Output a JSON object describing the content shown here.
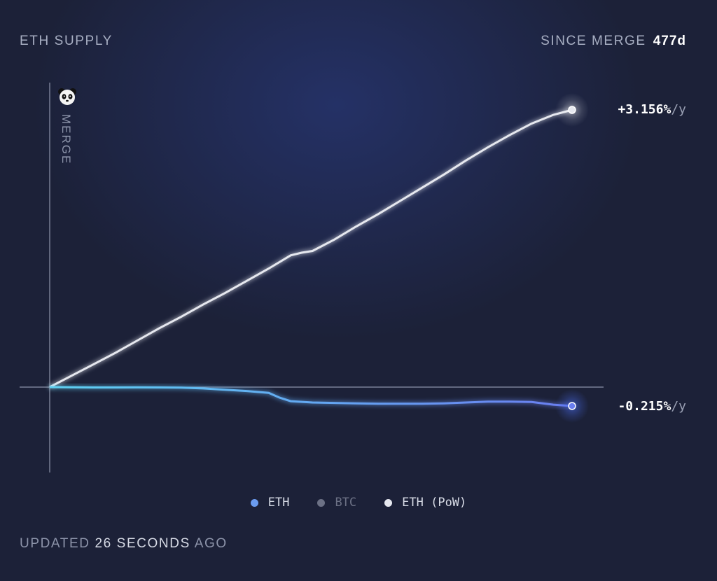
{
  "header": {
    "title": "ETH SUPPLY",
    "since_label": "SINCE MERGE",
    "since_value": "477d"
  },
  "markers": {
    "merge_label": "MERGE"
  },
  "end_labels": {
    "pow_value": "+3.156%",
    "pow_unit": "/y",
    "eth_value": "-0.215%",
    "eth_unit": "/y"
  },
  "legend": {
    "items": [
      {
        "label": "ETH",
        "color": "#6b9cf0",
        "text_color": "#d7dbe6"
      },
      {
        "label": "BTC",
        "color": "#6c7185",
        "text_color": "#6c7185"
      },
      {
        "label": "ETH (PoW)",
        "color": "#e6e8ef",
        "text_color": "#d7dbe6"
      }
    ]
  },
  "footer": {
    "prefix": "UPDATED",
    "number": "26 SECONDS",
    "suffix": "AGO"
  },
  "colors": {
    "eth_start": "#5ed1f2",
    "eth_end": "#6a7ef0",
    "pow_line": "#e6e8ef",
    "axis": "#8d94aa"
  },
  "chart_data": {
    "type": "line",
    "xlabel": "",
    "ylabel": "",
    "x_unit": "days since merge",
    "xlim": [
      0,
      477
    ],
    "ylim": [
      -1.0,
      4.1
    ],
    "series": [
      {
        "name": "ETH (PoW)",
        "end_label": "+3.156%/y",
        "x": [
          0,
          20,
          40,
          60,
          80,
          100,
          120,
          140,
          160,
          180,
          200,
          220,
          230,
          240,
          260,
          280,
          300,
          320,
          340,
          360,
          380,
          400,
          420,
          440,
          460,
          477
        ],
        "y": [
          0.0,
          0.13,
          0.26,
          0.39,
          0.53,
          0.67,
          0.8,
          0.94,
          1.07,
          1.21,
          1.35,
          1.5,
          1.53,
          1.55,
          1.68,
          1.83,
          1.97,
          2.12,
          2.27,
          2.42,
          2.58,
          2.73,
          2.87,
          3.0,
          3.1,
          3.156
        ]
      },
      {
        "name": "ETH",
        "end_label": "-0.215%/y",
        "x": [
          0,
          20,
          40,
          60,
          80,
          100,
          120,
          140,
          160,
          180,
          200,
          210,
          220,
          240,
          260,
          280,
          300,
          320,
          340,
          360,
          380,
          400,
          420,
          440,
          460,
          477
        ],
        "y": [
          0.0,
          -0.002,
          -0.004,
          -0.004,
          -0.003,
          -0.004,
          -0.006,
          -0.015,
          -0.03,
          -0.045,
          -0.065,
          -0.12,
          -0.16,
          -0.175,
          -0.18,
          -0.185,
          -0.19,
          -0.19,
          -0.19,
          -0.185,
          -0.175,
          -0.165,
          -0.165,
          -0.17,
          -0.2,
          -0.215
        ]
      }
    ]
  }
}
